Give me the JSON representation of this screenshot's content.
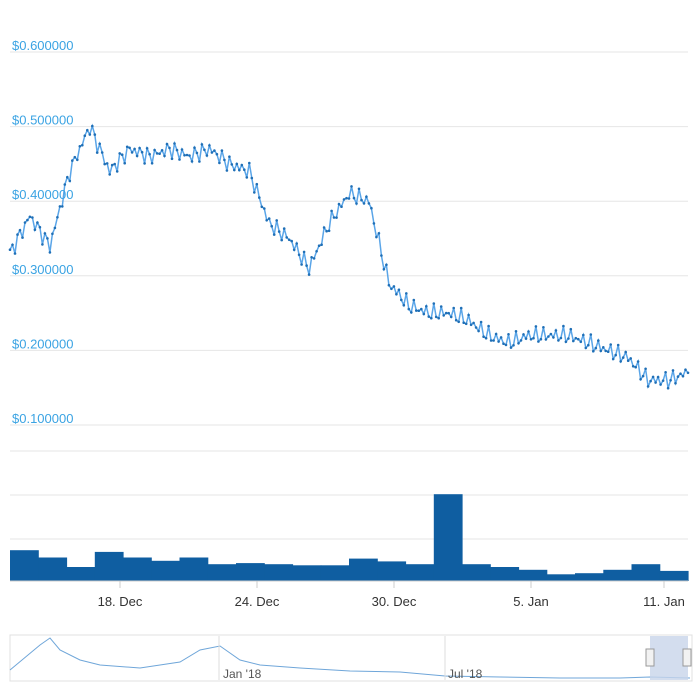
{
  "chart_data": {
    "type": "line",
    "price_series": {
      "color": "#1f6fb6",
      "x": [
        "14 Dec",
        "15 Dec",
        "16 Dec",
        "17 Dec",
        "17.5 Dec",
        "18 Dec",
        "19 Dec",
        "20 Dec",
        "21 Dec",
        "22 Dec",
        "23 Dec",
        "24 Dec",
        "25 Dec",
        "26 Dec",
        "27 Dec",
        "28 Dec",
        "29 Dec",
        "29.5 Dec",
        "30 Dec",
        "30.5 Dec",
        "31 Dec",
        "31.5 Dec",
        "1 Jan",
        "2 Jan",
        "3 Jan",
        "4 Jan",
        "5 Jan",
        "6 Jan",
        "7 Jan",
        "8 Jan",
        "9 Jan",
        "10 Jan",
        "10.5 Jan",
        "11 Jan",
        "11.3 Jan"
      ],
      "values": [
        0.33,
        0.38,
        0.34,
        0.44,
        0.5,
        0.44,
        0.47,
        0.46,
        0.47,
        0.46,
        0.47,
        0.45,
        0.44,
        0.37,
        0.35,
        0.31,
        0.37,
        0.41,
        0.4,
        0.29,
        0.26,
        0.25,
        0.25,
        0.24,
        0.22,
        0.21,
        0.22,
        0.22,
        0.22,
        0.21,
        0.2,
        0.19,
        0.16,
        0.16,
        0.17
      ]
    },
    "volume_series": {
      "color": "#0f5ea1",
      "values": [
        0.55,
        0.42,
        0.25,
        0.52,
        0.42,
        0.36,
        0.42,
        0.3,
        0.32,
        0.3,
        0.28,
        0.28,
        0.4,
        0.35,
        0.3,
        1.55,
        0.3,
        0.25,
        0.2,
        0.12,
        0.14,
        0.2,
        0.3,
        0.18
      ]
    },
    "y_ticks": [
      "$0.600000",
      "$0.500000",
      "$0.400000",
      "$0.300000",
      "$0.200000",
      "$0.100000"
    ],
    "y_tick_values": [
      0.6,
      0.5,
      0.4,
      0.3,
      0.2,
      0.1
    ],
    "ylim": [
      0.0,
      0.6
    ],
    "x_ticks": [
      "18. Dec",
      "24. Dec",
      "30. Dec",
      "5. Jan",
      "11. Jan"
    ],
    "grid": true,
    "navigator": {
      "labels": [
        "Jan '18",
        "Jul '18"
      ],
      "line_color": "#6fa6d9",
      "handle_color": "#c8d4ea"
    }
  }
}
